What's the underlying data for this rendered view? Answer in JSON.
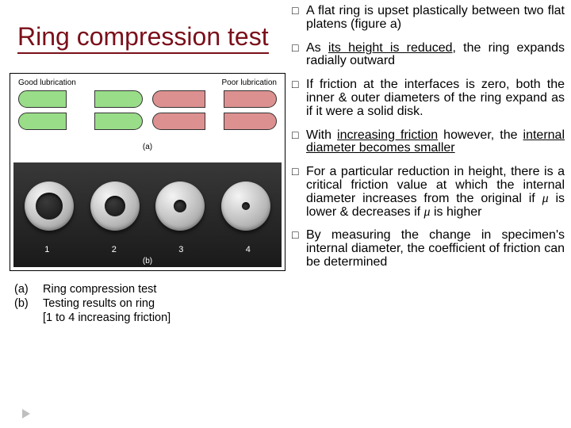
{
  "title": "Ring compression test",
  "figure": {
    "label_good": "Good lubrication",
    "label_poor": "Poor lubrication",
    "panel_a": "(a)",
    "panel_b": "(b)",
    "ring_numbers": [
      "1",
      "2",
      "3",
      "4"
    ]
  },
  "caption": {
    "a_label": "(a)",
    "a_text": "Ring compression test",
    "b_label": "(b)",
    "b_text": "Testing results on ring",
    "b_sub": "[1 to 4 increasing friction]"
  },
  "bullets": {
    "b1a": "A flat ring is upset plastically between two flat platens (figure a)",
    "b2a": "As ",
    "b2u": "its height is reduced,",
    "b2b": " the ring expands radially outward",
    "b3": "If friction at the interfaces is zero, both the inner & outer diameters of the ring expand as if it were a solid disk.",
    "b4a": "With ",
    "b4u1": "increasing friction",
    "b4b": " however, the ",
    "b4u2": "internal diameter becomes smaller",
    "b5a": "For a particular reduction in height, there is a critical friction value at which the internal diameter increases from the original if ",
    "b5b": " is lower & decreases if ",
    "b5c": " is higher",
    "b6": "By measuring the change in specimen's internal diameter, the coefficient of friction can be determined"
  },
  "mu": "μ"
}
